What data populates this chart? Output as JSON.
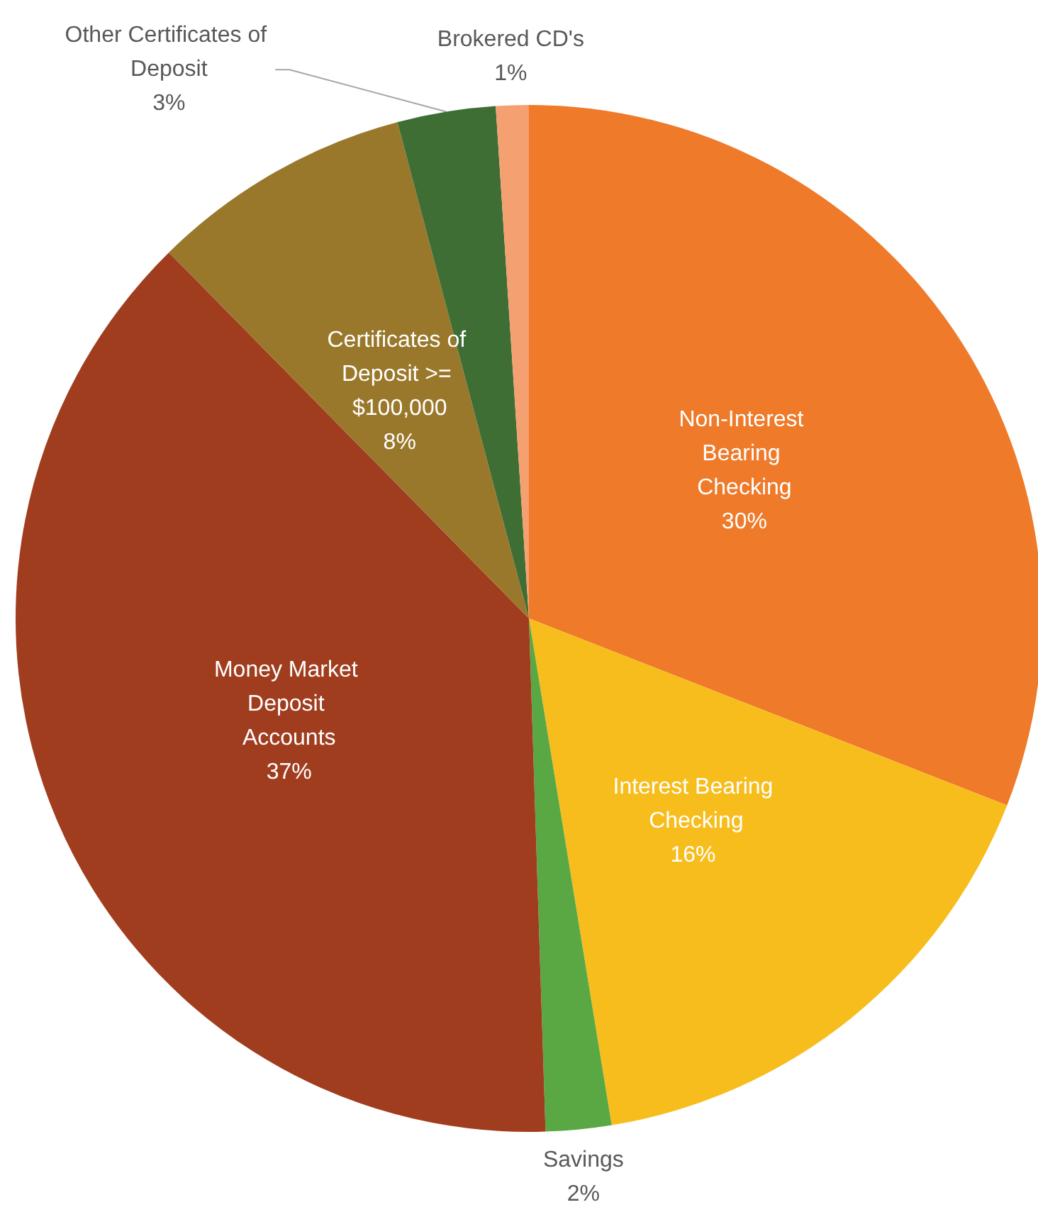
{
  "chart_data": {
    "type": "pie",
    "categories": [
      "Non-Interest Bearing Checking",
      "Interest Bearing Checking",
      "Savings",
      "Money Market Deposit Accounts",
      "Certificates of Deposit >= $100,000",
      "Other Certificates of Deposit",
      "Brokered CD's"
    ],
    "values": [
      30,
      16,
      2,
      37,
      8,
      3,
      1
    ],
    "value_labels": [
      "30%",
      "16%",
      "2%",
      "37%",
      "8%",
      "3%",
      "1%"
    ],
    "colors": [
      "#ee7a2a",
      "#f7bd1c",
      "#5aa843",
      "#a13d1f",
      "#9a782b",
      "#3f6e35",
      "#f4a071"
    ]
  }
}
